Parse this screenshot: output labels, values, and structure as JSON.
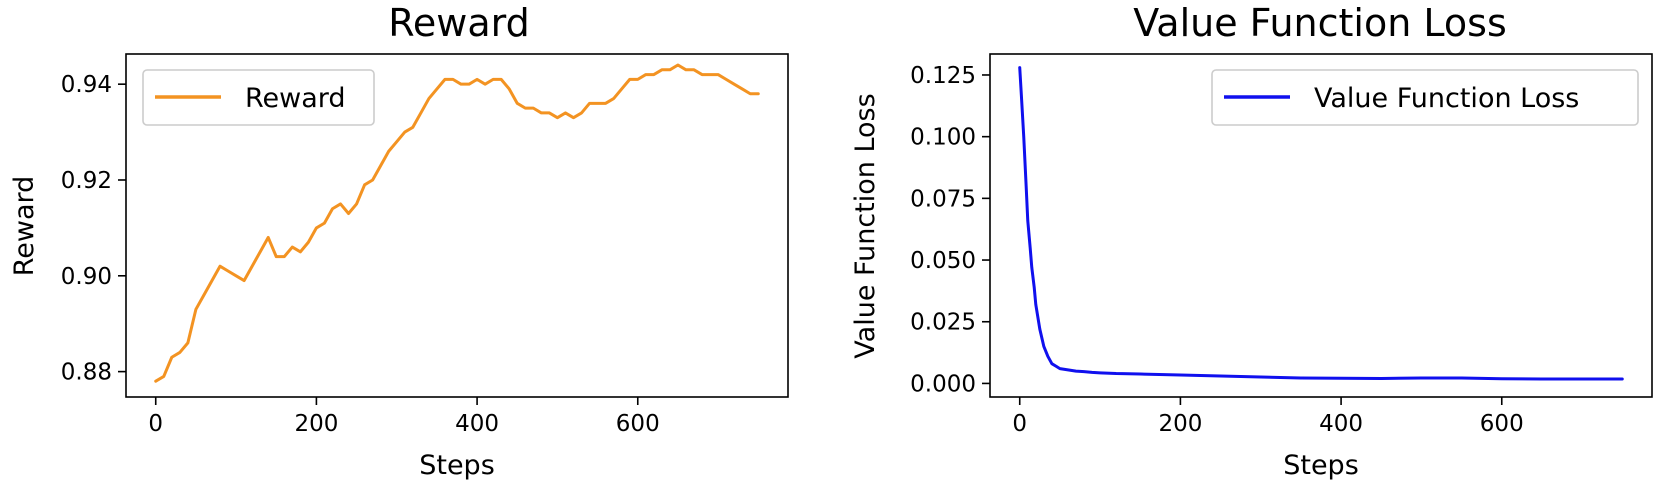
{
  "chart_data": [
    {
      "type": "line",
      "title": "Reward",
      "xlabel": "Steps",
      "ylabel": "Reward",
      "xlim": [
        -37,
        787
      ],
      "ylim": [
        0.8747,
        0.9463
      ],
      "xticks": [
        0,
        200,
        400,
        600
      ],
      "xtick_labels": [
        "0",
        "200",
        "400",
        "600"
      ],
      "yticks": [
        0.88,
        0.9,
        0.92,
        0.94
      ],
      "ytick_labels": [
        "0.88",
        "0.90",
        "0.92",
        "0.94"
      ],
      "grid": false,
      "legend_position": "top-left",
      "series": [
        {
          "name": "Reward",
          "color": "#f39322",
          "x": [
            0,
            10,
            20,
            30,
            40,
            50,
            60,
            70,
            80,
            90,
            100,
            110,
            120,
            130,
            140,
            150,
            160,
            170,
            180,
            190,
            200,
            210,
            220,
            230,
            240,
            250,
            260,
            270,
            280,
            290,
            300,
            310,
            320,
            330,
            340,
            350,
            360,
            370,
            380,
            390,
            400,
            410,
            420,
            430,
            440,
            450,
            460,
            470,
            480,
            490,
            500,
            510,
            520,
            530,
            540,
            550,
            560,
            570,
            580,
            590,
            600,
            610,
            620,
            630,
            640,
            650,
            660,
            670,
            680,
            690,
            700,
            710,
            720,
            730,
            740,
            750
          ],
          "y": [
            0.878,
            0.879,
            0.883,
            0.884,
            0.886,
            0.893,
            0.896,
            0.899,
            0.902,
            0.901,
            0.9,
            0.899,
            0.902,
            0.905,
            0.908,
            0.904,
            0.904,
            0.906,
            0.905,
            0.907,
            0.91,
            0.911,
            0.914,
            0.915,
            0.913,
            0.915,
            0.919,
            0.92,
            0.923,
            0.926,
            0.928,
            0.93,
            0.931,
            0.934,
            0.937,
            0.939,
            0.941,
            0.941,
            0.94,
            0.94,
            0.941,
            0.94,
            0.941,
            0.941,
            0.939,
            0.936,
            0.935,
            0.935,
            0.934,
            0.934,
            0.933,
            0.934,
            0.933,
            0.934,
            0.936,
            0.936,
            0.936,
            0.937,
            0.939,
            0.941,
            0.941,
            0.942,
            0.942,
            0.943,
            0.943,
            0.944,
            0.943,
            0.943,
            0.942,
            0.942,
            0.942,
            0.941,
            0.94,
            0.939,
            0.938,
            0.938
          ]
        }
      ]
    },
    {
      "type": "line",
      "title": "Value Function Loss",
      "xlabel": "Steps",
      "ylabel": "Value Function Loss",
      "xlim": [
        -37,
        787
      ],
      "ylim": [
        -0.0055,
        0.1335
      ],
      "xticks": [
        0,
        200,
        400,
        600
      ],
      "xtick_labels": [
        "0",
        "200",
        "400",
        "600"
      ],
      "yticks": [
        0.0,
        0.025,
        0.05,
        0.075,
        0.1,
        0.125
      ],
      "ytick_labels": [
        "0.000",
        "0.025",
        "0.050",
        "0.075",
        "0.100",
        "0.125"
      ],
      "grid": false,
      "legend_position": "top-right",
      "series": [
        {
          "name": "Value Function Loss",
          "color": "#1010ee",
          "x": [
            0,
            2,
            5,
            8,
            10,
            13,
            15,
            18,
            20,
            25,
            30,
            35,
            40,
            45,
            50,
            60,
            70,
            80,
            90,
            100,
            120,
            150,
            200,
            250,
            300,
            350,
            400,
            450,
            500,
            550,
            600,
            650,
            700,
            750
          ],
          "y": [
            0.128,
            0.117,
            0.1,
            0.08,
            0.066,
            0.055,
            0.047,
            0.039,
            0.032,
            0.022,
            0.015,
            0.011,
            0.008,
            0.007,
            0.006,
            0.0055,
            0.005,
            0.0048,
            0.0045,
            0.0043,
            0.004,
            0.0038,
            0.0034,
            0.003,
            0.0026,
            0.0022,
            0.0021,
            0.002,
            0.0022,
            0.0022,
            0.0019,
            0.0018,
            0.0018,
            0.0018
          ]
        }
      ]
    }
  ]
}
